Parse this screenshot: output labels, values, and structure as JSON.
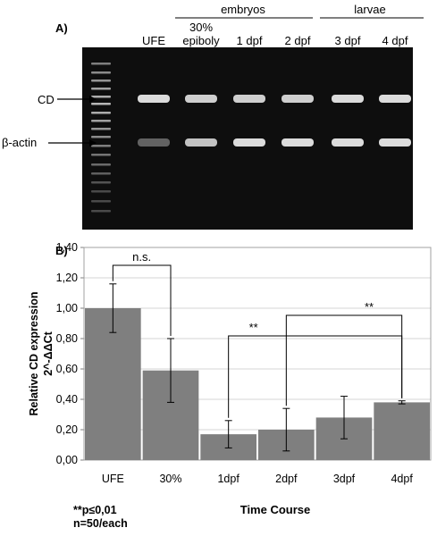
{
  "panel_a": {
    "label": "A)",
    "group_embryos": "embryos",
    "group_larvae": "larvae",
    "lanes": [
      "UFE",
      "30%\nepiboly",
      "1 dpf",
      "2 dpf",
      "3 dpf",
      "4 dpf"
    ],
    "bands": [
      {
        "label": "CD",
        "intensity": [
          0.85,
          0.8,
          0.8,
          0.8,
          0.85,
          0.85
        ]
      },
      {
        "label": "β-actin",
        "intensity": [
          0.35,
          0.75,
          0.85,
          0.85,
          0.85,
          0.85
        ]
      }
    ]
  },
  "panel_b": {
    "label": "B)",
    "footnote_sig": "**p≤0,01",
    "footnote_n": "n=50/each"
  },
  "chart_data": {
    "type": "bar",
    "categories": [
      "UFE",
      "30%",
      "1dpf",
      "2dpf",
      "3dpf",
      "4dpf"
    ],
    "values": [
      1.0,
      0.59,
      0.17,
      0.2,
      0.28,
      0.38
    ],
    "errors": [
      0.16,
      0.21,
      0.09,
      0.14,
      0.14,
      0.01
    ],
    "xlabel": "Time Course",
    "ylabel_line1": "Relative CD expression",
    "ylabel_line2": "2^-ΔΔCt",
    "ylim": [
      0,
      1.4
    ],
    "yticks": [
      "0,00",
      "0,20",
      "0,40",
      "0,60",
      "0,80",
      "1,00",
      "1,20",
      "1,40"
    ],
    "bar_color": "#7f7f7f",
    "annotations": [
      {
        "from": "UFE",
        "to": "30%",
        "text": "n.s."
      },
      {
        "from": "1dpf",
        "to": "4dpf",
        "text": "**"
      },
      {
        "from": "2dpf",
        "to": "4dpf",
        "text": "**"
      }
    ]
  }
}
